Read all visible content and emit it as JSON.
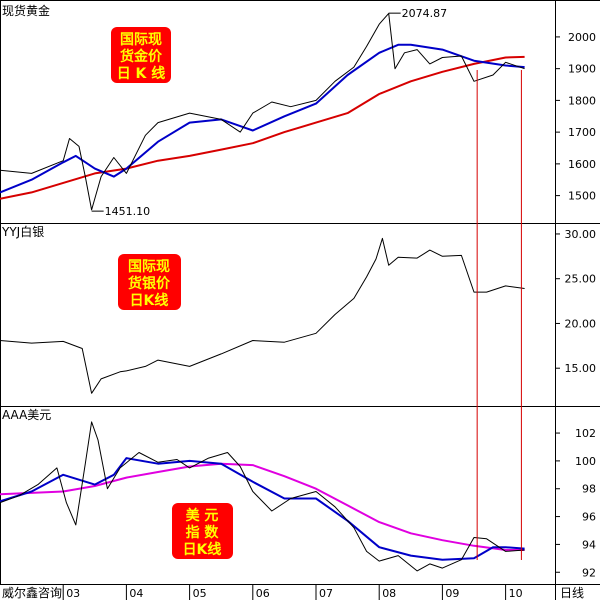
{
  "chart_data": [
    {
      "type": "line",
      "panel_title": "现货黄金",
      "badge_lines": [
        "国际现",
        "货金价",
        "日 K 线"
      ],
      "ylim": [
        1420,
        2110
      ],
      "ticks": [
        1500,
        1600,
        1700,
        1800,
        1900,
        2000
      ],
      "tick_labels": [
        "1500",
        "1600",
        "1700",
        "1800",
        "1900",
        "2000"
      ],
      "annotations": [
        {
          "text": "2074.87",
          "value": 2074.87,
          "x": 8.15
        },
        {
          "text": "1451.10",
          "value": 1451.1,
          "x": 3.45
        }
      ],
      "series": [
        {
          "color": "#d60000",
          "x": [
            2.0,
            2.5,
            3.0,
            3.5,
            4.0,
            4.5,
            5.0,
            5.5,
            6.0,
            6.5,
            7.0,
            7.5,
            8.0,
            8.5,
            9.0,
            9.5,
            10.0,
            10.3
          ],
          "values": [
            1490,
            1510,
            1540,
            1570,
            1585,
            1610,
            1625,
            1645,
            1665,
            1700,
            1730,
            1760,
            1820,
            1860,
            1890,
            1915,
            1935,
            1937
          ]
        },
        {
          "color": "#0000c8",
          "x": [
            2.0,
            2.5,
            3.0,
            3.2,
            3.5,
            3.8,
            4.0,
            4.5,
            5.0,
            5.5,
            6.0,
            6.5,
            7.0,
            7.5,
            8.0,
            8.3,
            8.5,
            9.0,
            9.5,
            10.0,
            10.3
          ],
          "values": [
            1510,
            1550,
            1605,
            1625,
            1585,
            1560,
            1585,
            1670,
            1730,
            1740,
            1705,
            1750,
            1790,
            1880,
            1950,
            1975,
            1975,
            1960,
            1925,
            1910,
            1905
          ]
        },
        {
          "color": "#000000",
          "x": [
            2.0,
            2.5,
            3.0,
            3.1,
            3.25,
            3.35,
            3.45,
            3.6,
            3.8,
            4.0,
            4.3,
            4.5,
            5.0,
            5.5,
            5.8,
            6.0,
            6.3,
            6.6,
            7.0,
            7.3,
            7.6,
            7.8,
            8.0,
            8.15,
            8.25,
            8.4,
            8.6,
            8.8,
            9.0,
            9.3,
            9.5,
            9.8,
            10.0,
            10.3
          ],
          "values": [
            1580,
            1570,
            1610,
            1680,
            1655,
            1560,
            1455,
            1560,
            1620,
            1570,
            1690,
            1730,
            1760,
            1740,
            1700,
            1760,
            1795,
            1780,
            1800,
            1860,
            1905,
            1970,
            2040,
            2074,
            1900,
            1950,
            1960,
            1915,
            1935,
            1940,
            1860,
            1880,
            1920,
            1900
          ]
        }
      ]
    },
    {
      "type": "line",
      "panel_title": "YYJ白银",
      "badge_lines": [
        "国际现",
        "货银价",
        "日K线"
      ],
      "ylim": [
        11,
        31
      ],
      "ticks": [
        15,
        20,
        25,
        30
      ],
      "tick_labels": [
        "15.00",
        "20.00",
        "25.00",
        "30.00"
      ],
      "series": [
        {
          "color": "#000000",
          "x": [
            2.0,
            2.5,
            3.0,
            3.3,
            3.45,
            3.6,
            3.9,
            4.0,
            4.3,
            4.5,
            5.0,
            5.5,
            6.0,
            6.5,
            7.0,
            7.3,
            7.6,
            7.8,
            7.95,
            8.05,
            8.15,
            8.3,
            8.6,
            8.8,
            9.0,
            9.3,
            9.5,
            9.7,
            10.0,
            10.3
          ],
          "values": [
            18.1,
            17.8,
            18.0,
            17.2,
            12.2,
            13.8,
            14.6,
            14.7,
            15.2,
            15.9,
            15.2,
            16.6,
            18.1,
            17.9,
            18.9,
            21.0,
            22.8,
            25.2,
            27.2,
            29.5,
            26.5,
            27.4,
            27.3,
            28.2,
            27.5,
            27.6,
            23.5,
            23.5,
            24.2,
            23.9
          ]
        }
      ]
    },
    {
      "type": "line",
      "panel_title": "AAA美元",
      "badge_lines": [
        "美  元",
        "指  数",
        "日K线"
      ],
      "ylim": [
        91.3,
        103.8
      ],
      "ticks": [
        92,
        94,
        96,
        98,
        100,
        102
      ],
      "tick_labels": [
        "92",
        "94",
        "96",
        "98",
        "100",
        "102"
      ],
      "series": [
        {
          "color": "#e000e0",
          "x": [
            2.0,
            2.5,
            3.0,
            3.5,
            4.0,
            4.5,
            5.0,
            5.5,
            6.0,
            6.5,
            7.0,
            7.5,
            8.0,
            8.5,
            9.0,
            9.5,
            10.0,
            10.3
          ],
          "values": [
            97.6,
            97.7,
            97.8,
            98.2,
            98.8,
            99.2,
            99.6,
            99.8,
            99.7,
            98.9,
            98.0,
            96.8,
            95.6,
            94.8,
            94.3,
            93.9,
            93.6,
            93.6
          ]
        },
        {
          "color": "#0000c8",
          "x": [
            2.0,
            2.5,
            3.0,
            3.5,
            3.8,
            4.0,
            4.5,
            5.0,
            5.5,
            6.0,
            6.5,
            7.0,
            7.5,
            8.0,
            8.5,
            9.0,
            9.5,
            9.8,
            10.0,
            10.3
          ],
          "values": [
            97.1,
            97.8,
            99.0,
            98.3,
            99.0,
            100.2,
            99.8,
            100.0,
            99.8,
            98.5,
            97.3,
            97.3,
            95.7,
            93.8,
            93.2,
            92.9,
            93.0,
            93.8,
            93.8,
            93.7
          ]
        },
        {
          "color": "#000000",
          "x": [
            2.0,
            2.3,
            2.6,
            2.9,
            3.05,
            3.2,
            3.35,
            3.45,
            3.55,
            3.7,
            3.9,
            4.2,
            4.5,
            4.8,
            5.0,
            5.3,
            5.6,
            5.8,
            6.0,
            6.3,
            6.6,
            7.0,
            7.3,
            7.6,
            7.8,
            8.0,
            8.3,
            8.6,
            8.8,
            9.0,
            9.3,
            9.5,
            9.7,
            10.0,
            10.3
          ],
          "values": [
            97.0,
            97.5,
            98.3,
            99.5,
            97.0,
            95.4,
            99.8,
            102.8,
            101.5,
            98.0,
            99.5,
            100.6,
            99.9,
            100.1,
            99.5,
            100.2,
            100.6,
            99.6,
            97.8,
            96.4,
            97.3,
            97.8,
            96.7,
            95.2,
            93.5,
            92.8,
            93.2,
            92.1,
            92.6,
            92.3,
            92.9,
            94.5,
            94.4,
            93.5,
            93.6
          ]
        }
      ],
      "x_ticks": [
        3,
        4,
        5,
        6,
        7,
        8,
        9,
        10
      ],
      "x_tick_labels": [
        "03",
        "04",
        "05",
        "06",
        "07",
        "08",
        "09",
        "10"
      ]
    }
  ],
  "footer": {
    "source": "威尔鑫咨询",
    "period": "日线"
  }
}
